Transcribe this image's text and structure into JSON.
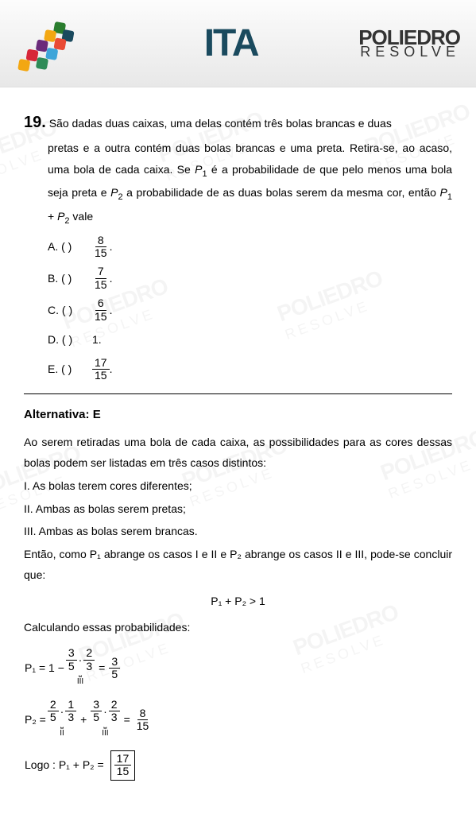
{
  "header": {
    "title": "ITA",
    "brand_l1": "POLIEDRO",
    "brand_l2": "RESOLVE",
    "title_color": "#1a4a5e"
  },
  "question": {
    "number": "19.",
    "text_line1": "São dadas duas caixas, uma delas contém três bolas brancas e duas",
    "text_rest": "pretas e a outra contém duas bolas brancas e uma preta. Retira-se, ao acaso, uma bola de cada caixa. Se P₁ é a probabilidade de que pelo menos uma bola seja preta e P₂ a probabilidade de as duas bolas serem da mesma cor, então P₁ + P₂ vale",
    "options": {
      "A": {
        "label": "A. (   )",
        "num": "8",
        "den": "15",
        "suffix": "."
      },
      "B": {
        "label": "B. (   )",
        "num": "7",
        "den": "15",
        "suffix": "."
      },
      "C": {
        "label": "C. (   )",
        "num": "6",
        "den": "15",
        "suffix": "."
      },
      "D": {
        "label": "D. (   )",
        "text": "1."
      },
      "E": {
        "label": "E. (   )",
        "num": "17",
        "den": "15",
        "suffix": "."
      }
    }
  },
  "solution": {
    "answer_label": "Alternativa: E",
    "intro": "Ao serem retiradas uma bola de cada caixa, as possibilidades para as cores dessas bolas podem ser listadas em três casos distintos:",
    "case1": "I.   As bolas terem cores diferentes;",
    "case2": "II.  Ambas as bolas serem pretas;",
    "case3": "III. Ambas as bolas serem brancas.",
    "then": "Então, como P₁ abrange os casos I e II e P₂ abrange os casos II e III, pode-se concluir que:",
    "ineq": "P₁ + P₂ > 1",
    "calc_label": "Calculando essas probabilidades:",
    "p1": {
      "lhs": "P₁ = 1 −",
      "f1_num": "3",
      "f1_den": "5",
      "dot1": "·",
      "f2_num": "2",
      "f2_den": "3",
      "eq": "=",
      "r_num": "3",
      "r_den": "5",
      "brace_label": "III"
    },
    "p2": {
      "lhs": "P₂ =",
      "a1_num": "2",
      "a1_den": "5",
      "dot1": "·",
      "a2_num": "1",
      "a2_den": "3",
      "plus": "+",
      "b1_num": "3",
      "b1_den": "5",
      "dot2": "·",
      "b2_num": "2",
      "b2_den": "3",
      "eq": "=",
      "r_num": "8",
      "r_den": "15",
      "brace_a": "II",
      "brace_b": "III"
    },
    "final": {
      "lhs": "Logo : P₁ + P₂ =",
      "num": "17",
      "den": "15"
    }
  },
  "watermark": {
    "l1": "POLIEDRO",
    "l2": "RESOLVE"
  },
  "puzzle_colors": [
    "#e94b35",
    "#2a7d2e",
    "#1a4a5e",
    "#f3a712",
    "#6b2a7a",
    "#3da5d9",
    "#d72638",
    "#2e8b57"
  ]
}
